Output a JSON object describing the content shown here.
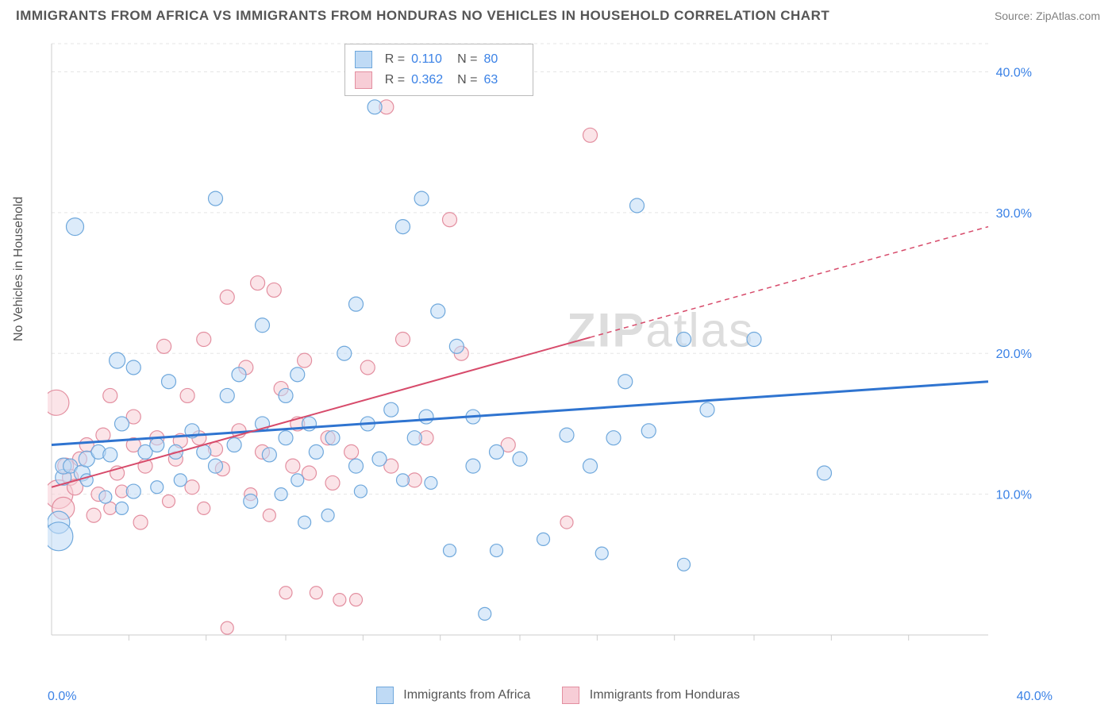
{
  "title": "IMMIGRANTS FROM AFRICA VS IMMIGRANTS FROM HONDURAS NO VEHICLES IN HOUSEHOLD CORRELATION CHART",
  "source": "Source: ZipAtlas.com",
  "watermark_zip": "ZIP",
  "watermark_atlas": "atlas",
  "y_axis_label": "No Vehicles in Household",
  "chart": {
    "type": "scatter",
    "xlim": [
      0,
      40
    ],
    "ylim": [
      0,
      42
    ],
    "y_ticks": [
      10,
      20,
      30,
      40
    ],
    "y_tick_labels": [
      "10.0%",
      "20.0%",
      "30.0%",
      "40.0%"
    ],
    "x_tick_left": "0.0%",
    "x_tick_right": "40.0%",
    "x_minor_ticks": [
      3.3,
      6.6,
      10,
      13.3,
      16.6,
      20,
      23.3,
      26.6,
      30,
      33.3,
      36.6
    ],
    "grid_color": "#e5e5e5",
    "grid_dash": "4,4",
    "axis_color": "#cccccc",
    "background_color": "#ffffff",
    "tick_label_color": "#3b82e6",
    "tick_label_fontsize": 16,
    "series": [
      {
        "name": "Immigrants from Africa",
        "fill": "#bfdaf5",
        "stroke": "#6fa8dc",
        "fill_opacity": 0.55,
        "marker_radius": 9,
        "R": "0.110",
        "N": "80",
        "trend": {
          "x1": 0,
          "y1": 13.5,
          "x2": 40,
          "y2": 18,
          "color": "#2f74d0",
          "width": 3,
          "solid_until_x": 40
        },
        "points": [
          {
            "x": 0.3,
            "y": 8,
            "r": 14
          },
          {
            "x": 0.3,
            "y": 7,
            "r": 18
          },
          {
            "x": 0.5,
            "y": 11.2,
            "r": 10
          },
          {
            "x": 0.5,
            "y": 12,
            "r": 10
          },
          {
            "x": 1,
            "y": 29,
            "r": 11
          },
          {
            "x": 0.8,
            "y": 12,
            "r": 9
          },
          {
            "x": 1.3,
            "y": 11.5,
            "r": 10
          },
          {
            "x": 1.5,
            "y": 11,
            "r": 8
          },
          {
            "x": 1.5,
            "y": 12.5,
            "r": 10
          },
          {
            "x": 2,
            "y": 13,
            "r": 9
          },
          {
            "x": 2.3,
            "y": 9.8,
            "r": 8
          },
          {
            "x": 2.5,
            "y": 12.8,
            "r": 9
          },
          {
            "x": 2.8,
            "y": 19.5,
            "r": 10
          },
          {
            "x": 3,
            "y": 15,
            "r": 9
          },
          {
            "x": 3,
            "y": 9,
            "r": 8
          },
          {
            "x": 3.5,
            "y": 19,
            "r": 9
          },
          {
            "x": 3.5,
            "y": 10.2,
            "r": 9
          },
          {
            "x": 4,
            "y": 13,
            "r": 9
          },
          {
            "x": 4.5,
            "y": 13.5,
            "r": 9
          },
          {
            "x": 4.5,
            "y": 10.5,
            "r": 8
          },
          {
            "x": 5,
            "y": 18,
            "r": 9
          },
          {
            "x": 5.3,
            "y": 13,
            "r": 9
          },
          {
            "x": 5.5,
            "y": 11,
            "r": 8
          },
          {
            "x": 6,
            "y": 14.5,
            "r": 9
          },
          {
            "x": 6.5,
            "y": 13,
            "r": 9
          },
          {
            "x": 7,
            "y": 31,
            "r": 9
          },
          {
            "x": 7,
            "y": 12,
            "r": 9
          },
          {
            "x": 7.5,
            "y": 17,
            "r": 9
          },
          {
            "x": 7.8,
            "y": 13.5,
            "r": 9
          },
          {
            "x": 8,
            "y": 18.5,
            "r": 9
          },
          {
            "x": 8.5,
            "y": 9.5,
            "r": 9
          },
          {
            "x": 9,
            "y": 22,
            "r": 9
          },
          {
            "x": 9,
            "y": 15,
            "r": 9
          },
          {
            "x": 9.3,
            "y": 12.8,
            "r": 9
          },
          {
            "x": 9.8,
            "y": 10,
            "r": 8
          },
          {
            "x": 10,
            "y": 17,
            "r": 9
          },
          {
            "x": 10,
            "y": 14,
            "r": 9
          },
          {
            "x": 10.5,
            "y": 18.5,
            "r": 9
          },
          {
            "x": 10.5,
            "y": 11,
            "r": 8
          },
          {
            "x": 10.8,
            "y": 8,
            "r": 8
          },
          {
            "x": 11,
            "y": 15,
            "r": 9
          },
          {
            "x": 11.3,
            "y": 13,
            "r": 9
          },
          {
            "x": 11.8,
            "y": 8.5,
            "r": 8
          },
          {
            "x": 12,
            "y": 14,
            "r": 9
          },
          {
            "x": 12.5,
            "y": 20,
            "r": 9
          },
          {
            "x": 13,
            "y": 12,
            "r": 9
          },
          {
            "x": 13,
            "y": 23.5,
            "r": 9
          },
          {
            "x": 13.2,
            "y": 10.2,
            "r": 8
          },
          {
            "x": 13.5,
            "y": 15,
            "r": 9
          },
          {
            "x": 13.8,
            "y": 37.5,
            "r": 9
          },
          {
            "x": 14,
            "y": 12.5,
            "r": 9
          },
          {
            "x": 14.5,
            "y": 16,
            "r": 9
          },
          {
            "x": 15,
            "y": 29,
            "r": 9
          },
          {
            "x": 15,
            "y": 11,
            "r": 8
          },
          {
            "x": 15.5,
            "y": 14,
            "r": 9
          },
          {
            "x": 15.8,
            "y": 31,
            "r": 9
          },
          {
            "x": 16,
            "y": 15.5,
            "r": 9
          },
          {
            "x": 16.2,
            "y": 10.8,
            "r": 8
          },
          {
            "x": 16.5,
            "y": 23,
            "r": 9
          },
          {
            "x": 17,
            "y": 6,
            "r": 8
          },
          {
            "x": 17.3,
            "y": 20.5,
            "r": 9
          },
          {
            "x": 18,
            "y": 12,
            "r": 9
          },
          {
            "x": 18,
            "y": 15.5,
            "r": 9
          },
          {
            "x": 18.5,
            "y": 1.5,
            "r": 8
          },
          {
            "x": 19,
            "y": 6,
            "r": 8
          },
          {
            "x": 19,
            "y": 13,
            "r": 9
          },
          {
            "x": 20,
            "y": 12.5,
            "r": 9
          },
          {
            "x": 21,
            "y": 6.8,
            "r": 8
          },
          {
            "x": 22,
            "y": 14.2,
            "r": 9
          },
          {
            "x": 23,
            "y": 12,
            "r": 9
          },
          {
            "x": 23.5,
            "y": 5.8,
            "r": 8
          },
          {
            "x": 24,
            "y": 14,
            "r": 9
          },
          {
            "x": 24.5,
            "y": 18,
            "r": 9
          },
          {
            "x": 25,
            "y": 30.5,
            "r": 9
          },
          {
            "x": 25.5,
            "y": 14.5,
            "r": 9
          },
          {
            "x": 27,
            "y": 5,
            "r": 8
          },
          {
            "x": 28,
            "y": 16,
            "r": 9
          },
          {
            "x": 30,
            "y": 21,
            "r": 9
          },
          {
            "x": 33,
            "y": 11.5,
            "r": 9
          },
          {
            "x": 27,
            "y": 21,
            "r": 9
          }
        ]
      },
      {
        "name": "Immigrants from Honduras",
        "fill": "#f7cdd6",
        "stroke": "#e38fa0",
        "fill_opacity": 0.55,
        "marker_radius": 9,
        "R": "0.362",
        "N": "63",
        "trend": {
          "x1": 0,
          "y1": 10.5,
          "x2": 40,
          "y2": 29,
          "color": "#d74b6b",
          "width": 2,
          "solid_until_x": 23
        },
        "points": [
          {
            "x": 0.2,
            "y": 16.5,
            "r": 16
          },
          {
            "x": 0.3,
            "y": 10,
            "r": 18
          },
          {
            "x": 0.5,
            "y": 9,
            "r": 14
          },
          {
            "x": 0.6,
            "y": 12,
            "r": 10
          },
          {
            "x": 0.8,
            "y": 11.2,
            "r": 10
          },
          {
            "x": 1,
            "y": 10.5,
            "r": 10
          },
          {
            "x": 1.2,
            "y": 12.5,
            "r": 9
          },
          {
            "x": 1.5,
            "y": 13.5,
            "r": 9
          },
          {
            "x": 1.8,
            "y": 8.5,
            "r": 9
          },
          {
            "x": 2,
            "y": 10,
            "r": 9
          },
          {
            "x": 2.2,
            "y": 14.2,
            "r": 9
          },
          {
            "x": 2.5,
            "y": 17,
            "r": 9
          },
          {
            "x": 2.5,
            "y": 9,
            "r": 8
          },
          {
            "x": 2.8,
            "y": 11.5,
            "r": 9
          },
          {
            "x": 3,
            "y": 10.2,
            "r": 8
          },
          {
            "x": 3.5,
            "y": 15.5,
            "r": 9
          },
          {
            "x": 3.5,
            "y": 13.5,
            "r": 9
          },
          {
            "x": 3.8,
            "y": 8,
            "r": 9
          },
          {
            "x": 4,
            "y": 12,
            "r": 9
          },
          {
            "x": 4.5,
            "y": 14,
            "r": 9
          },
          {
            "x": 4.8,
            "y": 20.5,
            "r": 9
          },
          {
            "x": 5,
            "y": 9.5,
            "r": 8
          },
          {
            "x": 5.3,
            "y": 12.5,
            "r": 9
          },
          {
            "x": 5.5,
            "y": 13.8,
            "r": 9
          },
          {
            "x": 5.8,
            "y": 17,
            "r": 9
          },
          {
            "x": 6,
            "y": 10.5,
            "r": 9
          },
          {
            "x": 6.3,
            "y": 14,
            "r": 9
          },
          {
            "x": 6.5,
            "y": 21,
            "r": 9
          },
          {
            "x": 6.5,
            "y": 9,
            "r": 8
          },
          {
            "x": 7,
            "y": 13.2,
            "r": 9
          },
          {
            "x": 7.3,
            "y": 11.8,
            "r": 9
          },
          {
            "x": 7.5,
            "y": 24,
            "r": 9
          },
          {
            "x": 7.5,
            "y": 0.5,
            "r": 8
          },
          {
            "x": 8,
            "y": 14.5,
            "r": 9
          },
          {
            "x": 8.3,
            "y": 19,
            "r": 9
          },
          {
            "x": 8.5,
            "y": 10,
            "r": 8
          },
          {
            "x": 8.8,
            "y": 25,
            "r": 9
          },
          {
            "x": 9,
            "y": 13,
            "r": 9
          },
          {
            "x": 9.3,
            "y": 8.5,
            "r": 8
          },
          {
            "x": 9.5,
            "y": 24.5,
            "r": 9
          },
          {
            "x": 9.8,
            "y": 17.5,
            "r": 9
          },
          {
            "x": 10,
            "y": 3,
            "r": 8
          },
          {
            "x": 10.3,
            "y": 12,
            "r": 9
          },
          {
            "x": 10.5,
            "y": 15,
            "r": 9
          },
          {
            "x": 10.8,
            "y": 19.5,
            "r": 9
          },
          {
            "x": 11,
            "y": 11.5,
            "r": 9
          },
          {
            "x": 11.3,
            "y": 3,
            "r": 8
          },
          {
            "x": 11.8,
            "y": 14,
            "r": 9
          },
          {
            "x": 12,
            "y": 10.8,
            "r": 9
          },
          {
            "x": 12.3,
            "y": 2.5,
            "r": 8
          },
          {
            "x": 12.8,
            "y": 13,
            "r": 9
          },
          {
            "x": 13,
            "y": 2.5,
            "r": 8
          },
          {
            "x": 13.5,
            "y": 19,
            "r": 9
          },
          {
            "x": 14.3,
            "y": 37.5,
            "r": 9
          },
          {
            "x": 14.5,
            "y": 12,
            "r": 9
          },
          {
            "x": 15,
            "y": 21,
            "r": 9
          },
          {
            "x": 15.5,
            "y": 11,
            "r": 9
          },
          {
            "x": 16,
            "y": 14,
            "r": 9
          },
          {
            "x": 17,
            "y": 29.5,
            "r": 9
          },
          {
            "x": 17.5,
            "y": 20,
            "r": 9
          },
          {
            "x": 22,
            "y": 8,
            "r": 8
          },
          {
            "x": 23,
            "y": 35.5,
            "r": 9
          },
          {
            "x": 19.5,
            "y": 13.5,
            "r": 9
          }
        ]
      }
    ]
  },
  "bottom_legend": {
    "series1": "Immigrants from Africa",
    "series2": "Immigrants from Honduras"
  },
  "top_legend_labels": {
    "R": "R =",
    "N": "N ="
  }
}
